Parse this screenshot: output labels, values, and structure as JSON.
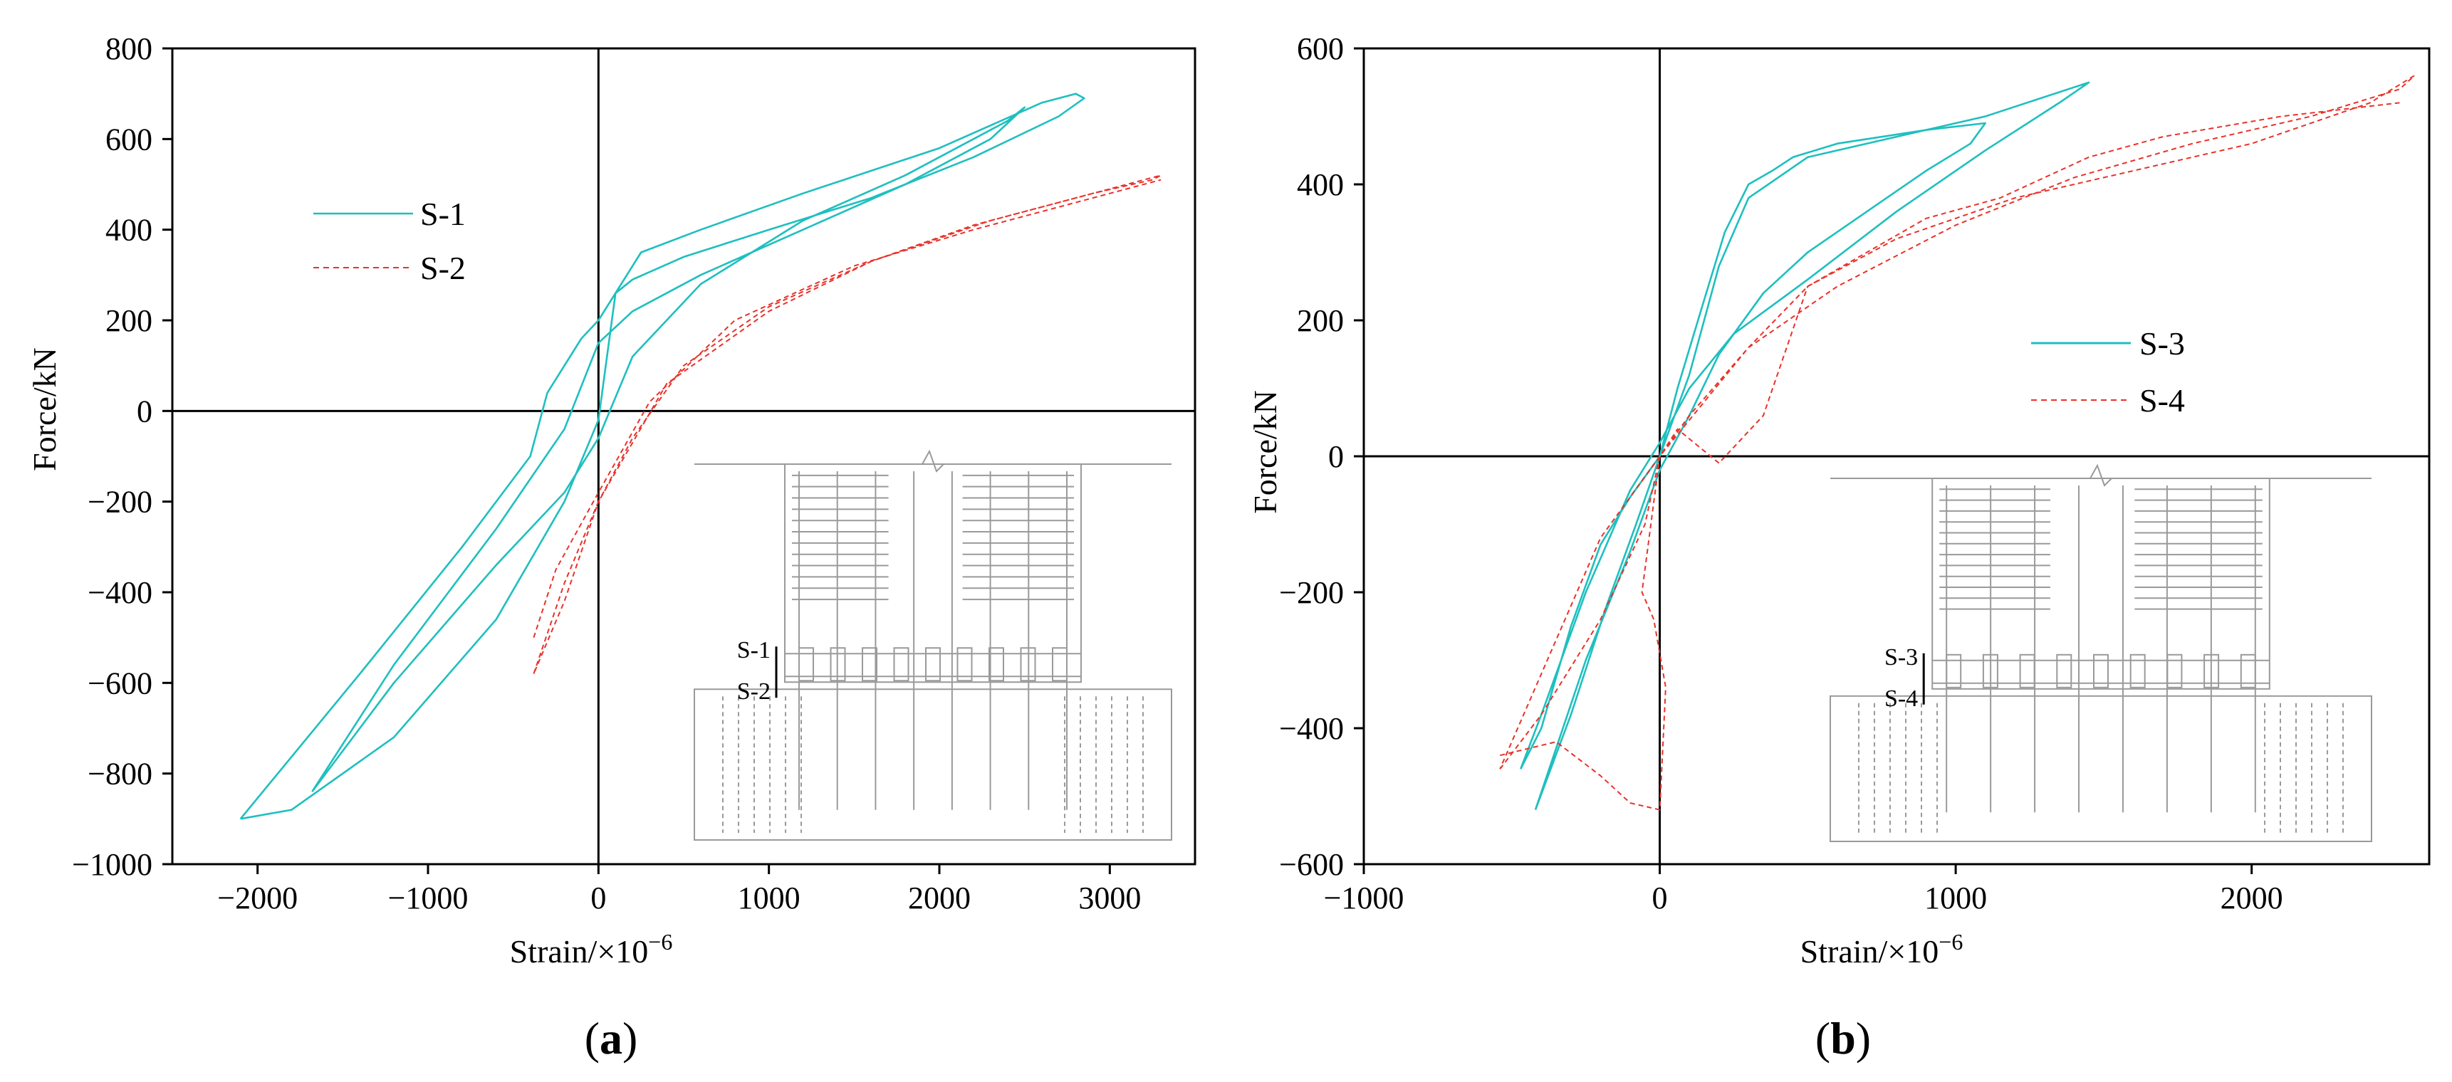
{
  "colors": {
    "s_cyan": "#1fbfbf",
    "s_red": "#e8322a",
    "axis": "#000000",
    "inset": "#9a9a9a"
  },
  "chart_data": [
    {
      "type": "line",
      "panel": "a",
      "panel_label_open": "(",
      "panel_label_letter": "a",
      "panel_label_close": ")",
      "xlabel": "Strain/×10",
      "xlabel_exp": "−6",
      "ylabel": "Force/kN",
      "xlim": [
        -2500,
        3500
      ],
      "ylim": [
        -1000,
        800
      ],
      "xticks": [
        -2000,
        -1000,
        0,
        1000,
        2000,
        3000
      ],
      "xtick_labels": [
        "−2000",
        "−1000",
        "0",
        "1000",
        "2000",
        "3000"
      ],
      "yticks": [
        -1000,
        -800,
        -600,
        -400,
        -200,
        0,
        200,
        400,
        600,
        800
      ],
      "ytick_labels": [
        "−1000",
        "−800",
        "−600",
        "−400",
        "−200",
        "0",
        "200",
        "400",
        "600",
        "800"
      ],
      "legend": [
        "S-1",
        "S-2"
      ],
      "legend_position": "upper-left",
      "inset_labels": [
        "S-1",
        "S-2"
      ],
      "series": [
        {
          "name": "S-1",
          "style": "solid",
          "x": [
            -1680,
            -1200,
            -600,
            -200,
            0,
            200,
            600,
            1200,
            1800,
            2400,
            2500,
            2300,
            1800,
            1200,
            600,
            200,
            0,
            -200,
            -600,
            -1200,
            -1680
          ],
          "y": [
            -840,
            -600,
            -340,
            -180,
            -60,
            120,
            280,
            420,
            520,
            640,
            670,
            600,
            500,
            400,
            300,
            220,
            150,
            -40,
            -260,
            -560,
            -840
          ]
        },
        {
          "name": "S-1",
          "style": "solid",
          "x": [
            -2100,
            -1400,
            -800,
            -400,
            -300,
            -100,
            0,
            250,
            600,
            1200,
            2000,
            2600,
            2800,
            2850,
            2700,
            2200,
            1600,
            1000,
            500,
            200,
            100,
            0,
            -200,
            -600,
            -1200,
            -1800,
            -2100
          ],
          "y": [
            -900,
            -580,
            -300,
            -100,
            40,
            160,
            200,
            350,
            400,
            480,
            580,
            680,
            700,
            690,
            650,
            560,
            470,
            400,
            340,
            290,
            260,
            -20,
            -200,
            -460,
            -720,
            -880,
            -900
          ]
        },
        {
          "name": "S-2",
          "style": "dashed",
          "x": [
            -380,
            -200,
            0,
            400,
            1000,
            1600,
            2200,
            2800,
            3300,
            3250,
            2900,
            2300,
            1600,
            1000,
            500,
            200,
            0,
            -200,
            -380
          ],
          "y": [
            -580,
            -380,
            -200,
            60,
            220,
            330,
            410,
            470,
            520,
            510,
            480,
            420,
            330,
            230,
            100,
            -60,
            -200,
            -420,
            -580
          ]
        },
        {
          "name": "S-2",
          "style": "dashed",
          "x": [
            -380,
            -250,
            0,
            300,
            800,
            1500,
            2200,
            2900,
            3300
          ],
          "y": [
            -500,
            -350,
            -180,
            20,
            200,
            320,
            400,
            470,
            510
          ]
        }
      ]
    },
    {
      "type": "line",
      "panel": "b",
      "panel_label_open": "(",
      "panel_label_letter": "b",
      "panel_label_close": ")",
      "xlabel": "Strain/×10",
      "xlabel_exp": "−6",
      "ylabel": "Force/kN",
      "xlim": [
        -1000,
        2600
      ],
      "ylim": [
        -600,
        600
      ],
      "xticks": [
        -1000,
        0,
        1000,
        2000
      ],
      "xtick_labels": [
        "−1000",
        "0",
        "1000",
        "2000"
      ],
      "yticks": [
        -600,
        -400,
        -200,
        0,
        200,
        400,
        600
      ],
      "ytick_labels": [
        "−600",
        "−400",
        "−200",
        "0",
        "200",
        "400",
        "600"
      ],
      "legend": [
        "S-3",
        "S-4"
      ],
      "legend_position": "center-right",
      "inset_labels": [
        "S-3",
        "S-4"
      ],
      "series": [
        {
          "name": "S-3",
          "style": "solid",
          "x": [
            -470,
            -400,
            -300,
            -200,
            -100,
            0,
            100,
            200,
            300,
            500,
            800,
            1100,
            1450,
            1350,
            1100,
            800,
            500,
            250,
            100,
            0,
            -100,
            -250,
            -400,
            -470
          ],
          "y": [
            -460,
            -400,
            -250,
            -130,
            -60,
            0,
            120,
            280,
            380,
            440,
            470,
            500,
            550,
            520,
            450,
            360,
            260,
            180,
            100,
            20,
            -50,
            -200,
            -380,
            -460
          ]
        },
        {
          "name": "S-3",
          "style": "solid",
          "x": [
            -420,
            -300,
            -180,
            -80,
            0,
            60,
            150,
            220,
            300,
            380,
            450,
            600,
            900,
            1100,
            1050,
            900,
            700,
            500,
            350,
            200,
            100,
            0,
            -100,
            -250,
            -420
          ],
          "y": [
            -520,
            -380,
            -220,
            -100,
            0,
            100,
            230,
            330,
            400,
            420,
            440,
            460,
            480,
            490,
            460,
            420,
            360,
            300,
            240,
            150,
            60,
            -20,
            -140,
            -300,
            -520
          ]
        },
        {
          "name": "S-4",
          "style": "dashed",
          "x": [
            -540,
            -400,
            -200,
            -50,
            0,
            100,
            300,
            600,
            1000,
            1400,
            1800,
            2200,
            2500,
            2550,
            2400,
            2000,
            1600,
            1200,
            800,
            500,
            300,
            150,
            0,
            -200,
            -400,
            -540
          ],
          "y": [
            -460,
            -380,
            -240,
            -100,
            0,
            60,
            160,
            250,
            340,
            410,
            460,
            500,
            540,
            560,
            520,
            460,
            420,
            380,
            320,
            250,
            160,
            80,
            0,
            -120,
            -320,
            -460
          ]
        },
        {
          "name": "S-4",
          "style": "dashed",
          "x": [
            -540,
            -350,
            -200,
            -100,
            0,
            20,
            -20,
            -60,
            -30,
            0,
            60,
            200,
            350,
            500,
            700,
            900,
            1150,
            1450,
            1700,
            2100,
            2500
          ],
          "y": [
            -440,
            -420,
            -470,
            -510,
            -520,
            -340,
            -240,
            -200,
            -100,
            0,
            40,
            -10,
            60,
            250,
            300,
            350,
            380,
            440,
            470,
            500,
            520
          ]
        }
      ]
    }
  ]
}
